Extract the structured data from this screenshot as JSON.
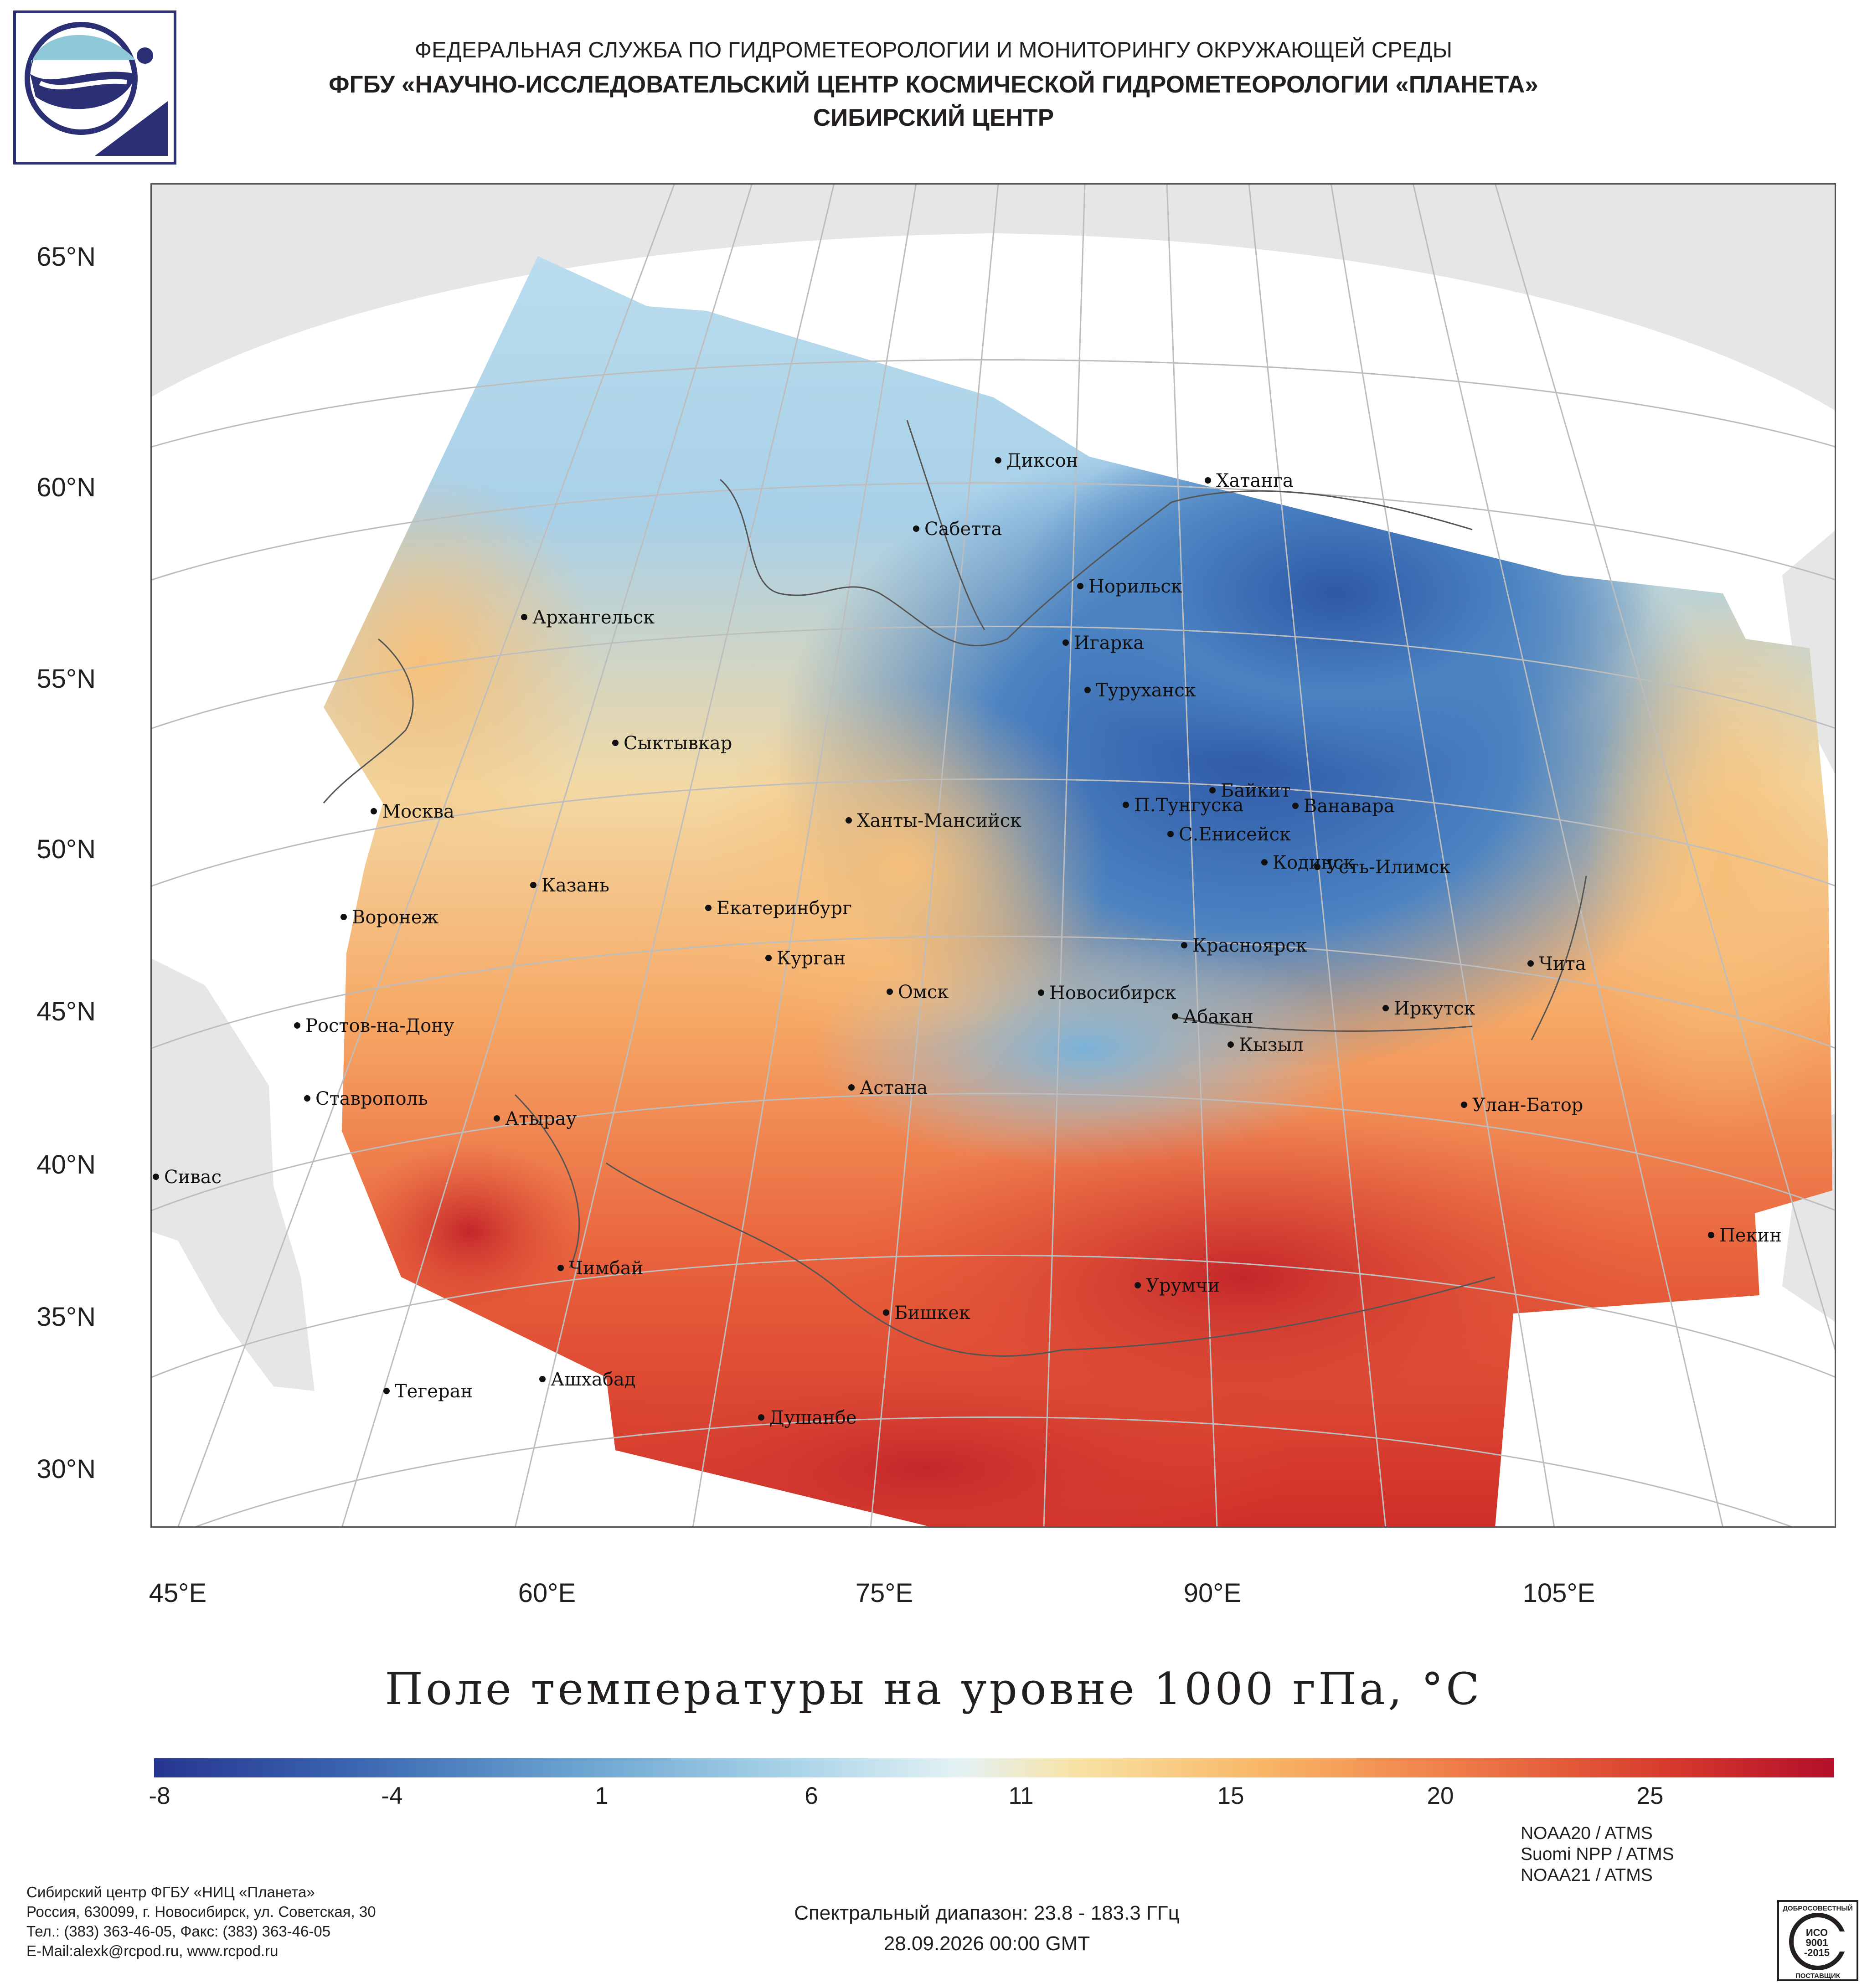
{
  "header": {
    "agency": "ФЕДЕРАЛЬНАЯ СЛУЖБА ПО ГИДРОМЕТЕОРОЛОГИИ И МОНИТОРИНГУ ОКРУЖАЮЩЕЙ СРЕДЫ",
    "institute": "ФГБУ «НАУЧНО-ИССЛЕДОВАТЕЛЬСКИЙ ЦЕНТР КОСМИЧЕСКОЙ ГИДРОМЕТЕОРОЛОГИИ «ПЛАНЕТА»",
    "center": "СИБИРСКИЙ ЦЕНТР"
  },
  "map": {
    "lat_labels": [
      "65°N",
      "60°N",
      "55°N",
      "50°N",
      "45°N",
      "40°N",
      "35°N",
      "30°N"
    ],
    "lon_labels": [
      "45°E",
      "60°E",
      "75°E",
      "90°E",
      "105°E"
    ],
    "cities": [
      {
        "name": "Диксон"
      },
      {
        "name": "Хатанга"
      },
      {
        "name": "Сабетта"
      },
      {
        "name": "Норильск"
      },
      {
        "name": "Архангельск"
      },
      {
        "name": "Игарка"
      },
      {
        "name": "Туруханск"
      },
      {
        "name": "Сыктывкар"
      },
      {
        "name": "Байкит"
      },
      {
        "name": "Москва"
      },
      {
        "name": "П.Тунгуска"
      },
      {
        "name": "Ванавара"
      },
      {
        "name": "Ханты-Мансийск"
      },
      {
        "name": "С.Енисейск"
      },
      {
        "name": "Кодинск"
      },
      {
        "name": "Усть-Илимск"
      },
      {
        "name": "Казань"
      },
      {
        "name": "Екатеринбург"
      },
      {
        "name": "Воронеж"
      },
      {
        "name": "Красноярск"
      },
      {
        "name": "Курган"
      },
      {
        "name": "Чита"
      },
      {
        "name": "Омск"
      },
      {
        "name": "Новосибирск"
      },
      {
        "name": "Иркутск"
      },
      {
        "name": "Абакан"
      },
      {
        "name": "Ростов-на-Дону"
      },
      {
        "name": "Кызыл"
      },
      {
        "name": "Астана"
      },
      {
        "name": "Ставрополь"
      },
      {
        "name": "Улан-Батор"
      },
      {
        "name": "Атырау"
      },
      {
        "name": "Сивас"
      },
      {
        "name": "Пекин"
      },
      {
        "name": "Чимбай"
      },
      {
        "name": "Урумчи"
      },
      {
        "name": "Бишкек"
      },
      {
        "name": "Ашхабад"
      },
      {
        "name": "Тегеран"
      },
      {
        "name": "Душанбе"
      }
    ]
  },
  "colorbar": {
    "title": "Поле температуры на уровне 1000 гПа, °С",
    "ticks": [
      "-8",
      "-4",
      "1",
      "6",
      "11",
      "15",
      "20",
      "25"
    ]
  },
  "footer": {
    "org_lines": [
      "Сибирский центр ФГБУ «НИЦ «Планета»",
      "Россия, 630099, г. Новосибирск, ул. Советская, 30",
      "Тел.: (383) 363-46-05, Факс: (383) 363-46-05",
      "E-Mail:alexk@rcpod.ru, www.rcpod.ru"
    ],
    "spectral": "Спектральный диапазон: 23.8 - 183.3 ГГц",
    "datetime": "28.09.2026 00:00 GMT",
    "satellites": [
      "NOAA20 / ATMS",
      "Suomi NPP / ATMS",
      "NOAA21 / ATMS"
    ],
    "iso_badge": {
      "top": "ДОБРОСОВЕСТНЫЙ",
      "mid1": "ИСО",
      "mid2": "9001",
      "mid3": "-2015",
      "bottom": "ПОСТАВЩИК"
    }
  },
  "colors": {
    "cold": "#2c4a9e",
    "cool": "#6aa3d0",
    "mild": "#dceef2",
    "warm": "#f7c97a",
    "hot": "#d3342c",
    "land_outside": "#e6e6e6",
    "logo_blue": "#2b2f74",
    "logo_light": "#8fc8d6"
  }
}
